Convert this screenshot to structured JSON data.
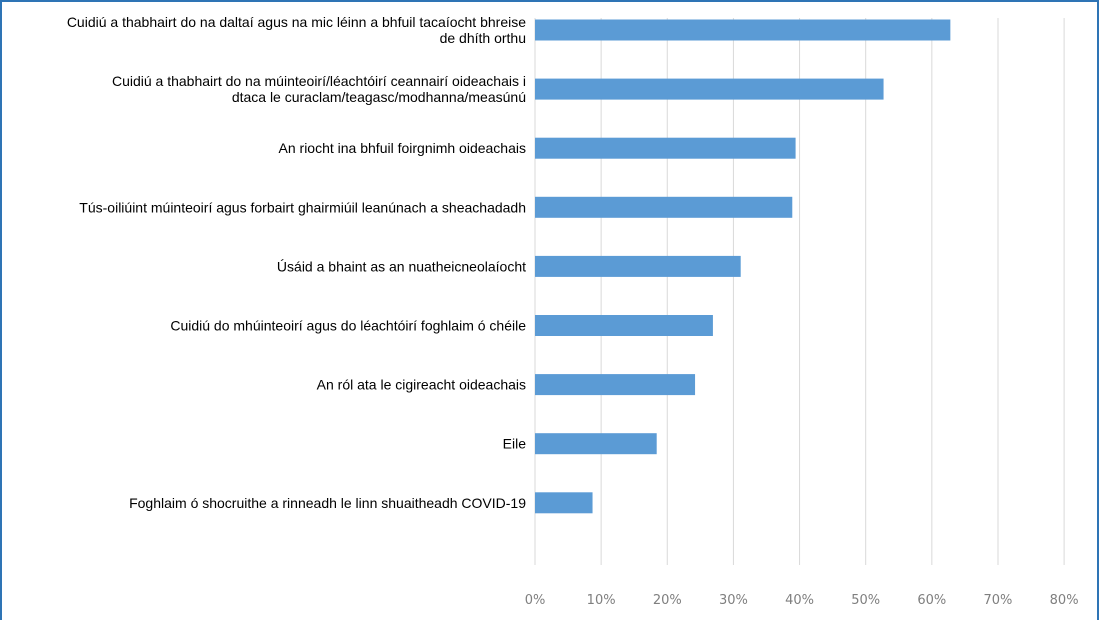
{
  "chart_data": {
    "type": "bar",
    "orientation": "horizontal",
    "categories": [
      [
        "Cuidiú a thabhairt do na daltaí agus na mic léinn a bhfuil tacaíocht bhreise",
        "de dhíth orthu"
      ],
      [
        "Cuidiú a thabhairt do na múinteoirí/léachtóirí ceannairí oideachais i",
        "dtaca le curaclam/teagasc/modhanna/measúnú"
      ],
      [
        "An riocht ina bhfuil foirgnimh oideachais"
      ],
      [
        "Tús-oiliúint múinteoirí agus forbairt ghairmiúil leanúnach a sheachadadh"
      ],
      [
        "Úsáid a bhaint as an nuatheicneolaíocht"
      ],
      [
        "Cuidiú do mhúinteoirí agus do léachtóirí foghlaim ó chéile"
      ],
      [
        "An ról ata le cigireacht oideachais"
      ],
      [
        "Eile"
      ],
      [
        "Foghlaim ó shocruithe a rinneadh le linn shuaitheadh COVID-19"
      ]
    ],
    "values": [
      62.8,
      52.7,
      39.4,
      38.9,
      31.1,
      26.9,
      24.2,
      18.4,
      8.7
    ],
    "xlim": [
      0,
      80
    ],
    "ticks": [
      "0%",
      "10%",
      "20%",
      "30%",
      "40%",
      "50%",
      "60%",
      "70%",
      "80%"
    ],
    "grid": true,
    "bar_color": "#5b9bd5",
    "grid_color": "#d9d9d9"
  }
}
